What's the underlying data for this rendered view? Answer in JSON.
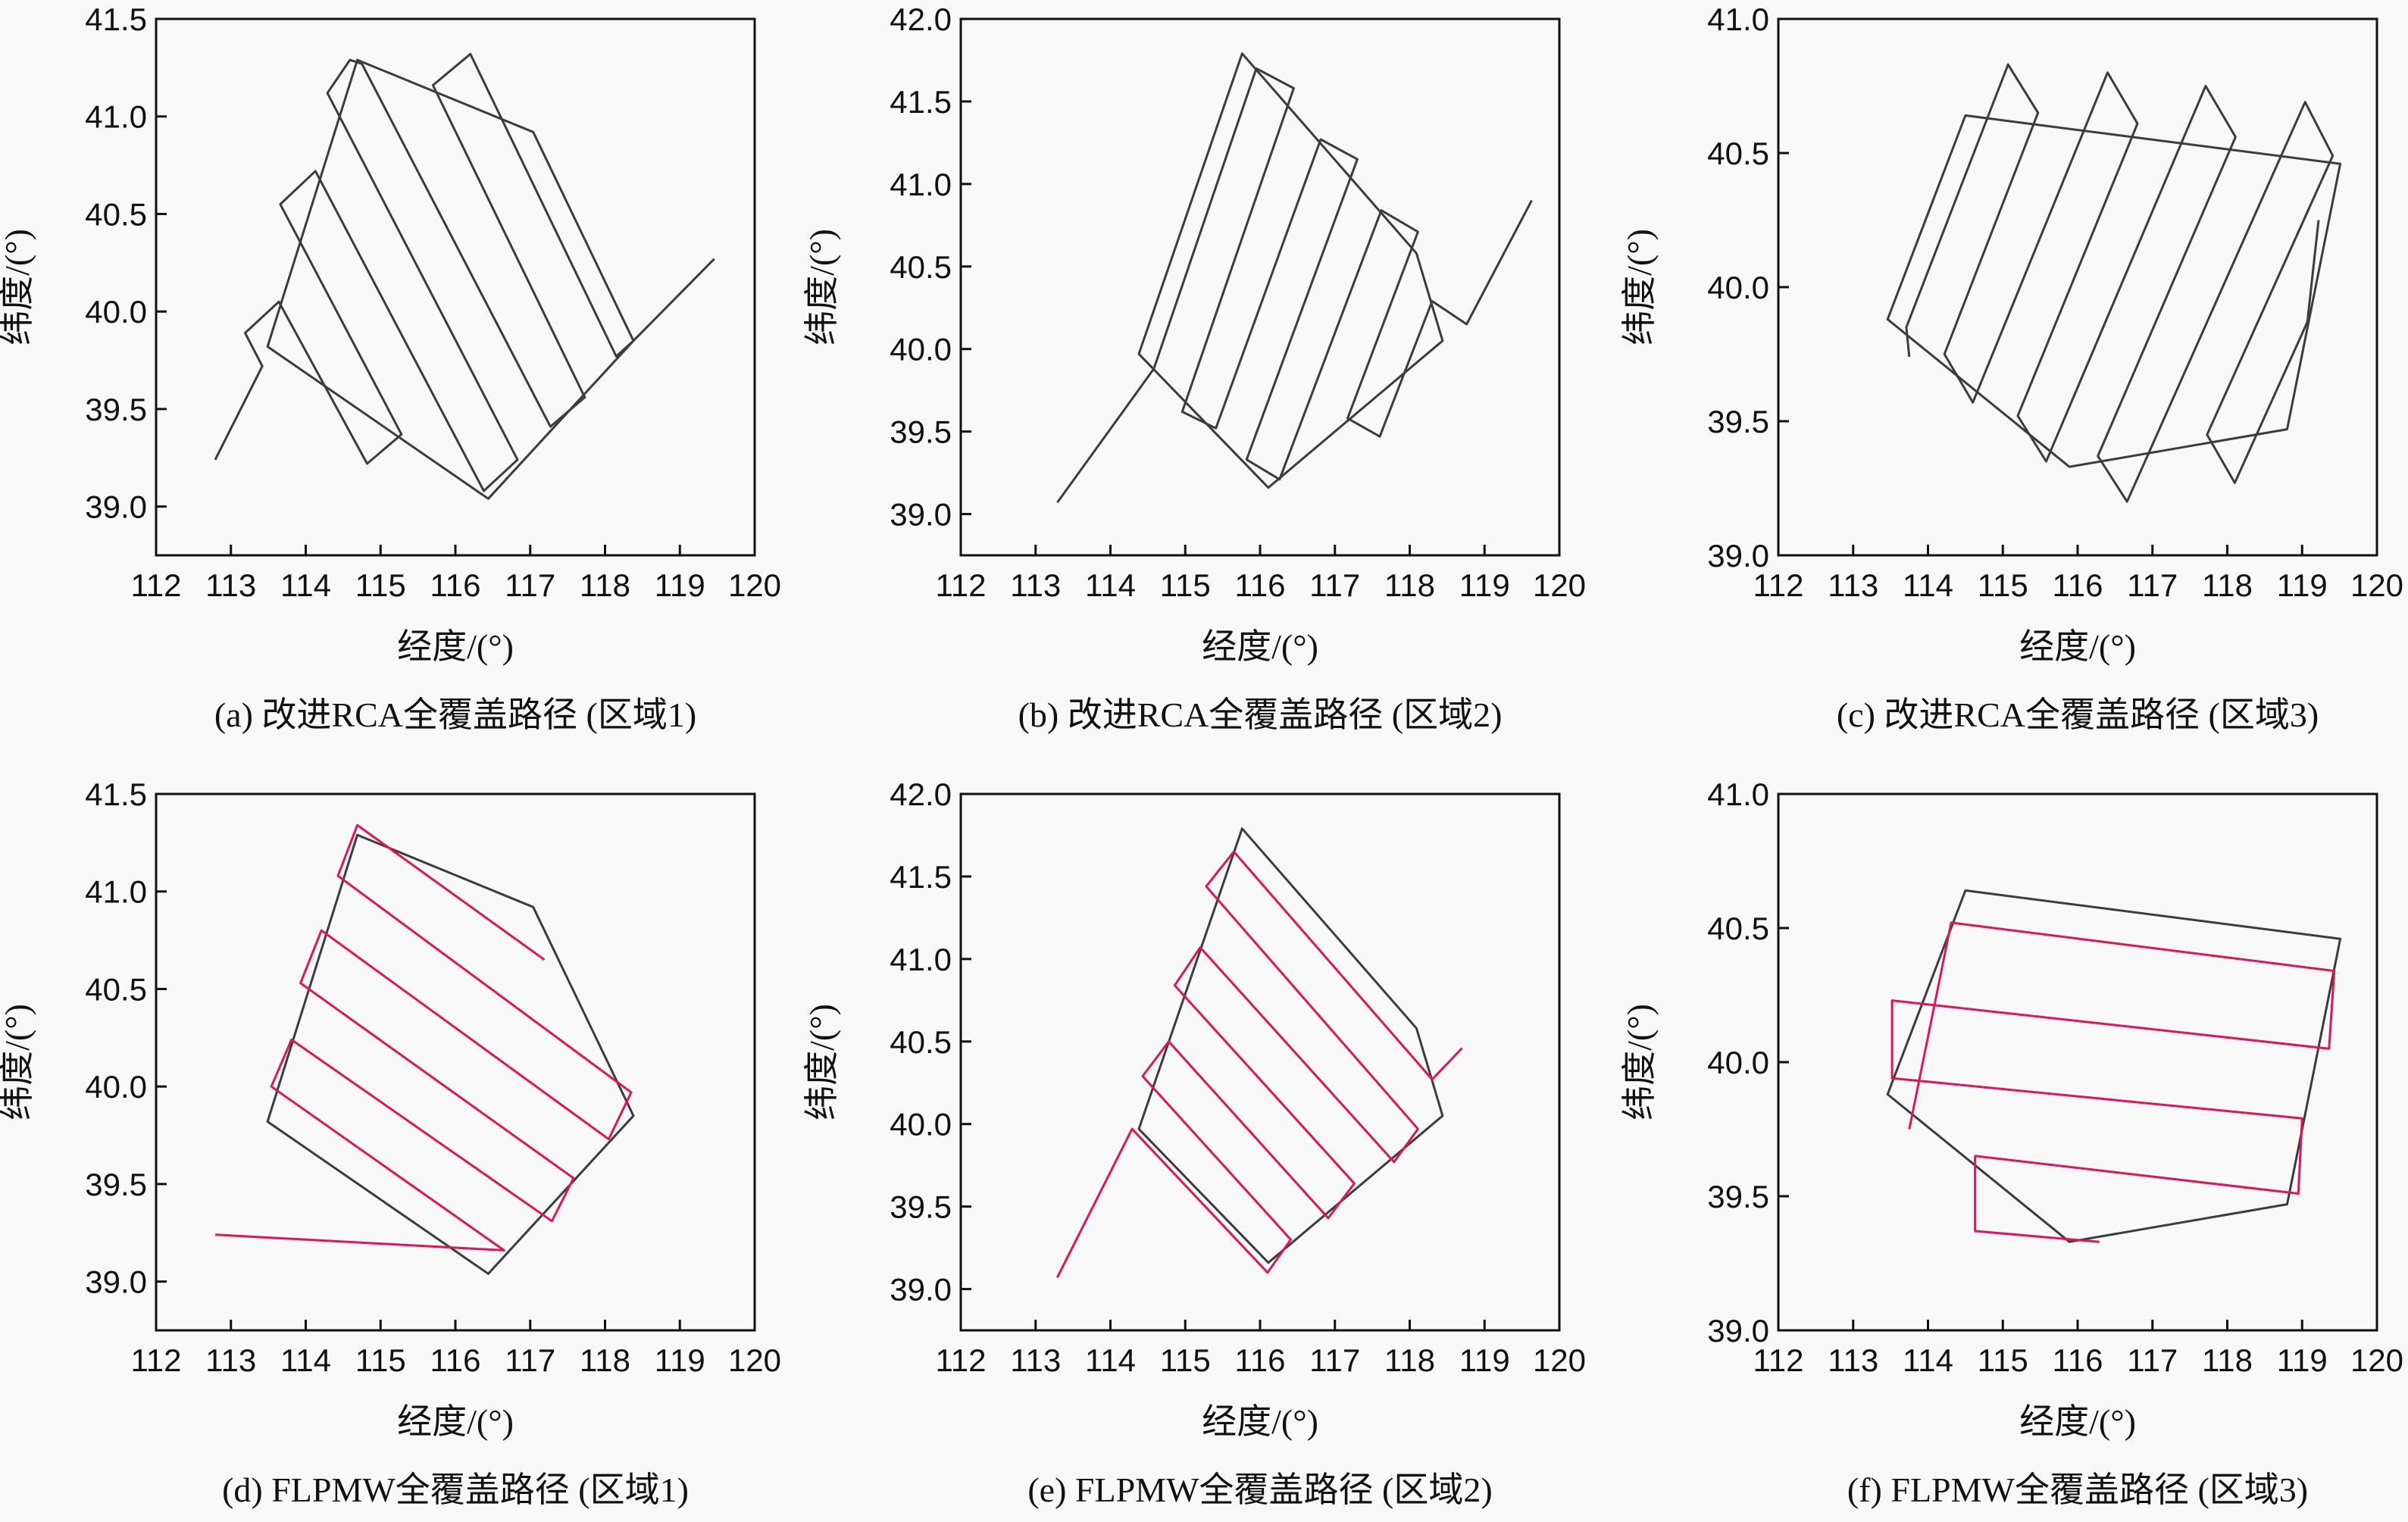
{
  "chart_data": [
    {
      "type": "line",
      "title": "(a) 改进RCA全覆盖路径 (区域1)",
      "xlabel": "经度/(°)",
      "ylabel": "纬度/(°)",
      "xlim": [
        112,
        120
      ],
      "ylim": [
        38.75,
        41.5
      ],
      "xticks": [
        "112",
        "113",
        "114",
        "115",
        "116",
        "117",
        "118",
        "119",
        "120"
      ],
      "yticks": [
        "39.0",
        "39.5",
        "40.0",
        "40.5",
        "41.0",
        "41.5"
      ],
      "series": [
        {
          "color": "#3c3c3c",
          "closed": true,
          "points": [
            [
              114.69,
              41.29
            ],
            [
              117.04,
              40.92
            ],
            [
              118.38,
              39.85
            ],
            [
              116.44,
              39.04
            ],
            [
              113.49,
              39.82
            ]
          ]
        },
        {
          "color": "#3c3c3c",
          "closed": false,
          "points": [
            [
              112.79,
              39.24
            ],
            [
              113.42,
              39.72
            ],
            [
              113.19,
              39.89
            ],
            [
              113.64,
              40.05
            ],
            [
              114.82,
              39.22
            ],
            [
              115.28,
              39.37
            ],
            [
              113.66,
              40.55
            ],
            [
              114.13,
              40.72
            ],
            [
              116.38,
              39.08
            ],
            [
              116.83,
              39.24
            ],
            [
              114.29,
              41.12
            ],
            [
              114.59,
              41.29
            ],
            [
              114.75,
              41.27
            ],
            [
              117.27,
              39.41
            ],
            [
              117.73,
              39.56
            ],
            [
              115.7,
              41.16
            ],
            [
              116.2,
              41.32
            ],
            [
              118.15,
              39.77
            ],
            [
              118.38,
              39.85
            ],
            [
              119.46,
              40.27
            ]
          ]
        }
      ]
    },
    {
      "type": "line",
      "title": "(b) 改进RCA全覆盖路径 (区域2)",
      "xlabel": "经度/(°)",
      "ylabel": "纬度/(°)",
      "xlim": [
        112,
        120
      ],
      "ylim": [
        38.75,
        42.0
      ],
      "xticks": [
        "112",
        "113",
        "114",
        "115",
        "116",
        "117",
        "118",
        "119",
        "120"
      ],
      "yticks": [
        "39.0",
        "39.5",
        "40.0",
        "40.5",
        "41.0",
        "41.5",
        "42.0"
      ],
      "series": [
        {
          "color": "#3c3c3c",
          "closed": true,
          "points": [
            [
              115.76,
              41.79
            ],
            [
              118.09,
              40.58
            ],
            [
              118.44,
              40.05
            ],
            [
              116.11,
              39.16
            ],
            [
              114.38,
              39.97
            ]
          ]
        },
        {
          "color": "#3c3c3c",
          "closed": false,
          "points": [
            [
              113.29,
              39.07
            ],
            [
              114.58,
              39.88
            ],
            [
              115.95,
              41.7
            ],
            [
              116.45,
              41.58
            ],
            [
              114.96,
              39.62
            ],
            [
              115.41,
              39.52
            ],
            [
              116.81,
              41.27
            ],
            [
              117.3,
              41.15
            ],
            [
              115.82,
              39.33
            ],
            [
              116.26,
              39.21
            ],
            [
              117.62,
              40.84
            ],
            [
              118.11,
              40.71
            ],
            [
              117.17,
              39.58
            ],
            [
              117.6,
              39.47
            ],
            [
              118.3,
              40.29
            ],
            [
              118.76,
              40.15
            ],
            [
              119.63,
              40.9
            ]
          ]
        }
      ]
    },
    {
      "type": "line",
      "title": "(c) 改进RCA全覆盖路径 (区域3)",
      "xlabel": "经度/(°)",
      "ylabel": "纬度/(°)",
      "xlim": [
        112,
        120
      ],
      "ylim": [
        39.0,
        41.0
      ],
      "xticks": [
        "112",
        "113",
        "114",
        "115",
        "116",
        "117",
        "118",
        "119",
        "120"
      ],
      "yticks": [
        "39.0",
        "39.5",
        "40.0",
        "40.5",
        "41.0"
      ],
      "series": [
        {
          "color": "#3c3c3c",
          "closed": true,
          "points": [
            [
              114.5,
              40.64
            ],
            [
              119.51,
              40.46
            ],
            [
              118.8,
              39.47
            ],
            [
              115.89,
              39.33
            ],
            [
              113.46,
              39.88
            ]
          ]
        },
        {
          "color": "#3c3c3c",
          "closed": false,
          "points": [
            [
              113.75,
              39.74
            ],
            [
              113.71,
              39.85
            ],
            [
              115.07,
              40.83
            ],
            [
              115.47,
              40.65
            ],
            [
              114.22,
              39.75
            ],
            [
              114.6,
              39.57
            ],
            [
              116.4,
              40.8
            ],
            [
              116.8,
              40.61
            ],
            [
              115.2,
              39.52
            ],
            [
              115.58,
              39.35
            ],
            [
              117.71,
              40.75
            ],
            [
              118.11,
              40.56
            ],
            [
              116.27,
              39.37
            ],
            [
              116.66,
              39.2
            ],
            [
              119.04,
              40.69
            ],
            [
              119.41,
              40.49
            ],
            [
              117.73,
              39.45
            ],
            [
              118.1,
              39.27
            ],
            [
              119.07,
              39.87
            ],
            [
              119.22,
              40.25
            ]
          ]
        }
      ]
    },
    {
      "type": "line",
      "title": "(d) FLPMW全覆盖路径 (区域1)",
      "xlabel": "经度/(°)",
      "ylabel": "纬度/(°)",
      "xlim": [
        112,
        120
      ],
      "ylim": [
        38.75,
        41.5
      ],
      "xticks": [
        "112",
        "113",
        "114",
        "115",
        "116",
        "117",
        "118",
        "119",
        "120"
      ],
      "yticks": [
        "39.0",
        "39.5",
        "40.0",
        "40.5",
        "41.0",
        "41.5"
      ],
      "series": [
        {
          "color": "#3c3c3c",
          "closed": true,
          "points": [
            [
              114.69,
              41.29
            ],
            [
              117.04,
              40.92
            ],
            [
              118.38,
              39.85
            ],
            [
              116.44,
              39.04
            ],
            [
              113.49,
              39.82
            ]
          ]
        },
        {
          "color": "#e0145a",
          "closed": false,
          "points": [
            [
              112.79,
              39.24
            ],
            [
              116.65,
              39.16
            ],
            [
              113.54,
              40.0
            ],
            [
              113.81,
              40.24
            ],
            [
              117.29,
              39.31
            ],
            [
              117.58,
              39.53
            ],
            [
              113.93,
              40.53
            ],
            [
              114.21,
              40.8
            ],
            [
              118.05,
              39.73
            ],
            [
              118.35,
              39.97
            ],
            [
              114.43,
              41.08
            ],
            [
              114.69,
              41.34
            ],
            [
              117.19,
              40.65
            ]
          ]
        }
      ]
    },
    {
      "type": "line",
      "title": "(e) FLPMW全覆盖路径 (区域2)",
      "xlabel": "经度/(°)",
      "ylabel": "纬度/(°)",
      "xlim": [
        112,
        120
      ],
      "ylim": [
        38.75,
        42.0
      ],
      "xticks": [
        "112",
        "113",
        "114",
        "115",
        "116",
        "117",
        "118",
        "119",
        "120"
      ],
      "yticks": [
        "39.0",
        "39.5",
        "40.0",
        "40.5",
        "41.0",
        "41.5",
        "42.0"
      ],
      "series": [
        {
          "color": "#3c3c3c",
          "closed": true,
          "points": [
            [
              115.76,
              41.79
            ],
            [
              118.09,
              40.58
            ],
            [
              118.44,
              40.05
            ],
            [
              116.11,
              39.16
            ],
            [
              114.38,
              39.97
            ]
          ]
        },
        {
          "color": "#e0145a",
          "closed": false,
          "points": [
            [
              113.29,
              39.07
            ],
            [
              114.29,
              39.97
            ],
            [
              116.1,
              39.1
            ],
            [
              116.41,
              39.3
            ],
            [
              114.43,
              40.29
            ],
            [
              114.78,
              40.5
            ],
            [
              116.91,
              39.43
            ],
            [
              117.26,
              39.64
            ],
            [
              114.86,
              40.84
            ],
            [
              115.2,
              41.07
            ],
            [
              117.79,
              39.77
            ],
            [
              118.11,
              39.97
            ],
            [
              115.28,
              41.44
            ],
            [
              115.65,
              41.65
            ],
            [
              118.3,
              40.27
            ],
            [
              118.7,
              40.46
            ]
          ]
        }
      ]
    },
    {
      "type": "line",
      "title": "(f) FLPMW全覆盖路径 (区域3)",
      "xlabel": "经度/(°)",
      "ylabel": "纬度/(°)",
      "xlim": [
        112,
        120
      ],
      "ylim": [
        39.0,
        41.0
      ],
      "xticks": [
        "112",
        "113",
        "114",
        "115",
        "116",
        "117",
        "118",
        "119",
        "120"
      ],
      "yticks": [
        "39.0",
        "39.5",
        "40.0",
        "40.5",
        "41.0"
      ],
      "series": [
        {
          "color": "#3c3c3c",
          "closed": true,
          "points": [
            [
              114.5,
              40.64
            ],
            [
              119.51,
              40.46
            ],
            [
              118.8,
              39.47
            ],
            [
              115.89,
              39.33
            ],
            [
              113.46,
              39.88
            ]
          ]
        },
        {
          "color": "#e0145a",
          "closed": false,
          "points": [
            [
              113.75,
              39.75
            ],
            [
              114.31,
              40.52
            ],
            [
              119.43,
              40.34
            ],
            [
              119.36,
              40.05
            ],
            [
              113.52,
              40.23
            ],
            [
              113.52,
              39.94
            ],
            [
              119.0,
              39.79
            ],
            [
              118.95,
              39.51
            ],
            [
              114.63,
              39.65
            ],
            [
              114.63,
              39.37
            ],
            [
              116.29,
              39.33
            ]
          ]
        }
      ]
    }
  ]
}
